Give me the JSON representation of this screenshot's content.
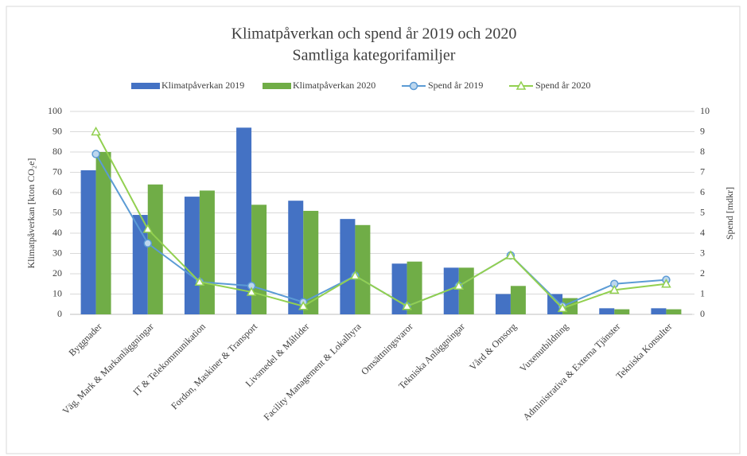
{
  "chart_data": {
    "type": "bar",
    "title": "Klimatpåverkan och spend år 2019 och 2020",
    "subtitle": "Samtliga kategorifamiljer",
    "y_label": "Klimatpåverkan [kton CO₂e]",
    "y2_label": "Spend [mdkr]",
    "categories": [
      "Byggnader",
      "Väg, Mark & Markanläggningar",
      "IT & Telekommunikation",
      "Fordon, Maskiner & Transport",
      "Livsmedel & Måltider",
      "Facility Management & Lokalhyra",
      "Omsättningsvaror",
      "Tekniska Anläggningar",
      "Vård & Omsorg",
      "Vuxenutbildning",
      "Administrativa & Externa Tjänster",
      "Tekniska Konsulter"
    ],
    "series": [
      {
        "name": "Klimatpåverkan 2019",
        "color": "#4472c4",
        "values": [
          71,
          49,
          58,
          92,
          56,
          47,
          25,
          23,
          10,
          10,
          3,
          3
        ]
      },
      {
        "name": "Klimatpåverkan 2020",
        "color": "#70ad47",
        "values": [
          80,
          64,
          61,
          54,
          51,
          44,
          26,
          23,
          14,
          8,
          2.5,
          2.5
        ]
      },
      {
        "name": "Spend år 2019",
        "color": "#5b9bd5",
        "axis": "y2",
        "marker": "circle",
        "values": [
          7.9,
          3.5,
          1.6,
          1.4,
          0.6,
          1.9,
          0.4,
          1.4,
          2.9,
          0.4,
          1.5,
          1.7
        ]
      },
      {
        "name": "Spend år 2020",
        "color": "#92d050",
        "axis": "y2",
        "marker": "triangle",
        "values": [
          9.0,
          4.2,
          1.6,
          1.1,
          0.4,
          1.9,
          0.4,
          1.4,
          2.9,
          0.3,
          1.2,
          1.5
        ]
      }
    ],
    "ylim": [
      0,
      100
    ],
    "yticks": [
      0,
      10,
      20,
      30,
      40,
      50,
      60,
      70,
      80,
      90,
      100
    ],
    "y2lim": [
      0,
      10
    ],
    "y2ticks": [
      0,
      1,
      2,
      3,
      4,
      5,
      6,
      7,
      8,
      9,
      10
    ],
    "grid": true,
    "legend": "top"
  }
}
